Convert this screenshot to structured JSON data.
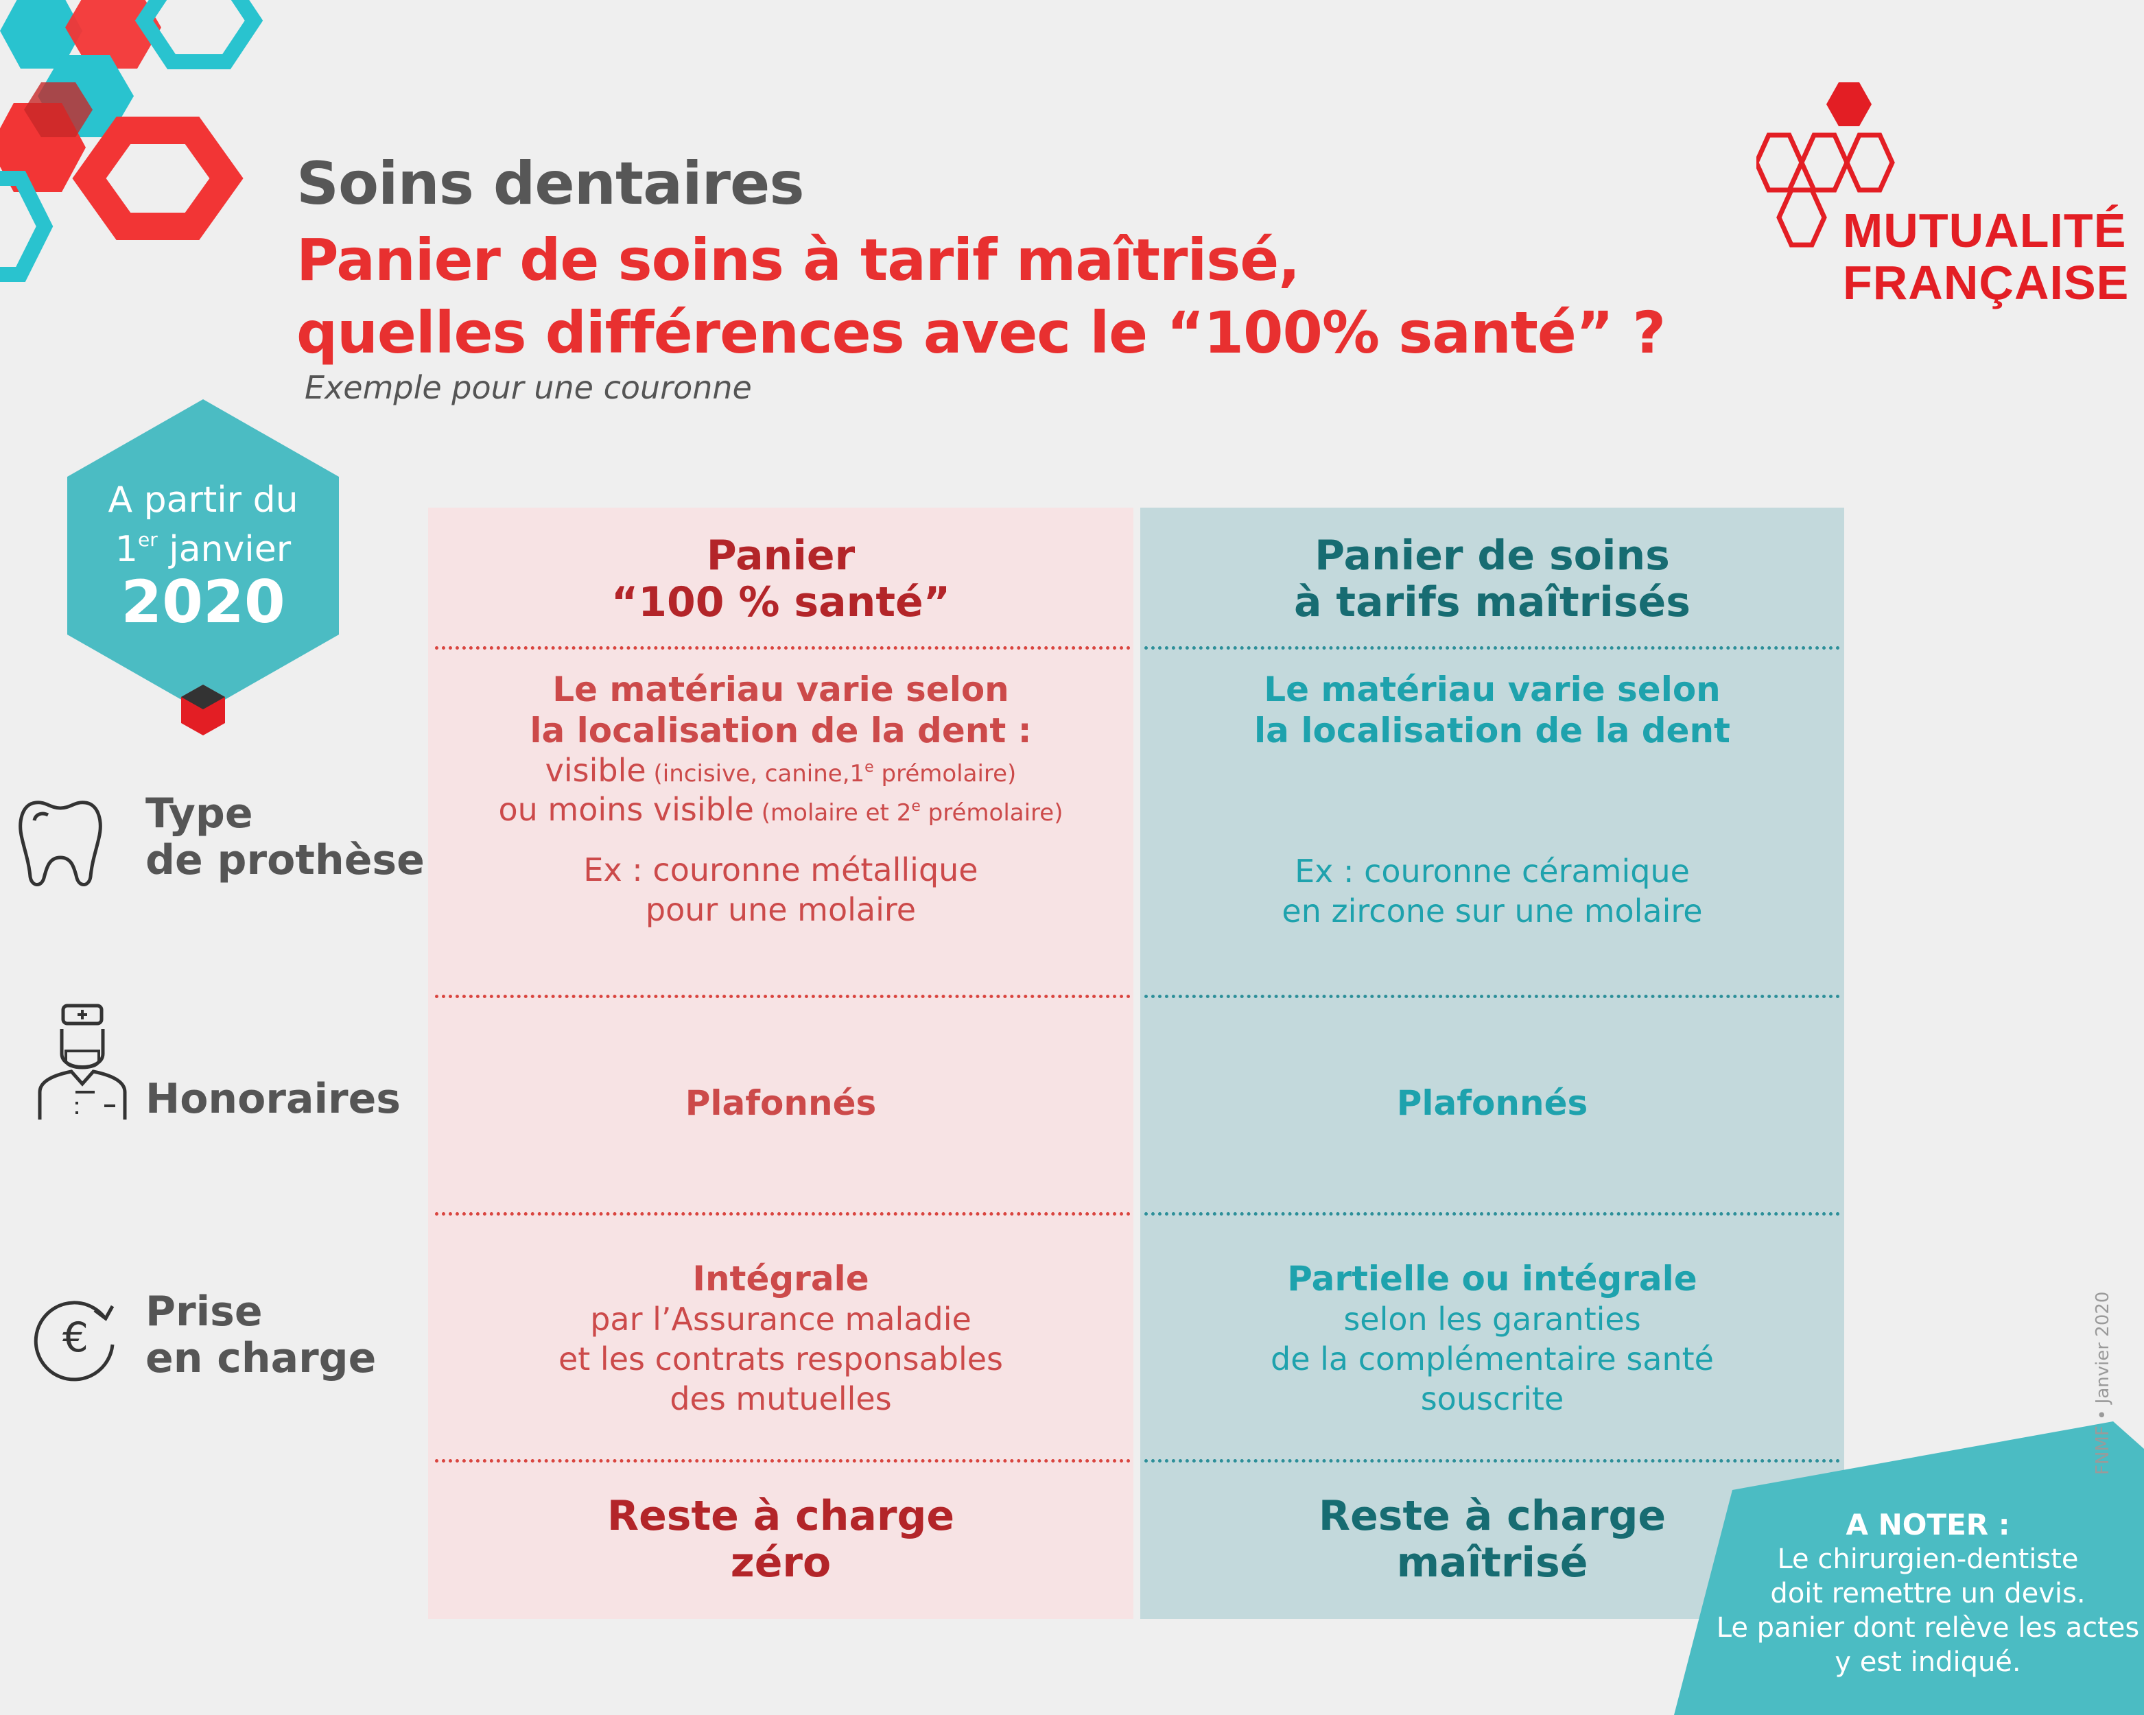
{
  "header": {
    "title": "Soins dentaires",
    "subtitle_line1": "Panier de soins à tarif maîtrisé,",
    "subtitle_line2": "quelles différences avec le “100% santé” ?",
    "example": "Exemple pour une couronne"
  },
  "logo": {
    "line1": "MUTUALITÉ",
    "line2": "FRANÇAISE"
  },
  "badge": {
    "line1": "A partir du",
    "line2_num": "1",
    "line2_sup": "er",
    "line2_rest": " janvier",
    "year": "2020"
  },
  "rows": {
    "type": {
      "line1": "Type",
      "line2": "de prothèse",
      "icon": "tooth-icon"
    },
    "honoraires": {
      "label": "Honoraires",
      "icon": "dentist-icon"
    },
    "prise": {
      "line1": "Prise",
      "line2": "en charge",
      "icon": "euro-cycle-icon"
    }
  },
  "left": {
    "head1": "Panier",
    "head2": "“100 % santé”",
    "mat1": "Le matériau varie selon",
    "mat2": "la localisation de la dent :",
    "visible": "visible",
    "visible_detail_a": " (incisive, canine,1",
    "visible_detail_sup": "e",
    "visible_detail_b": " prémolaire)",
    "moins": "ou moins visible",
    "moins_detail_a": " (molaire et 2",
    "moins_detail_sup": "e",
    "moins_detail_b": " prémolaire)",
    "ex1": "Ex : couronne métallique",
    "ex2": "pour une molaire",
    "honoraires": "Plafonnés",
    "prise1": "Intégrale",
    "prise2": "par l’Assurance maladie",
    "prise3": "et les contrats responsables",
    "prise4": "des mutuelles",
    "reste1": "Reste à charge",
    "reste2": "zéro"
  },
  "right": {
    "head1": "Panier de soins",
    "head2": "à tarifs maîtrisés",
    "mat1": "Le matériau varie selon",
    "mat2": "la localisation de la dent",
    "ex1": "Ex : couronne céramique",
    "ex2": "en zircone sur une molaire",
    "honoraires": "Plafonnés",
    "prise1": "Partielle ou intégrale",
    "prise2": "selon les garanties",
    "prise3": "de la complémentaire santé",
    "prise4": "souscrite",
    "reste1": "Reste à charge",
    "reste2": "maîtrisé"
  },
  "note": {
    "title": "A NOTER :",
    "line1": "Le chirurgien-dentiste",
    "line2": "doit remettre un devis.",
    "line3": "Le panier dont relève les actes",
    "line4": "y est indiqué."
  },
  "credit": "FNMF • Janvier 2020",
  "colors": {
    "red": "#e83030",
    "teal": "#4bbcc3",
    "pink_col": "#f7e3e4",
    "teal_col": "#c3d9dc"
  }
}
